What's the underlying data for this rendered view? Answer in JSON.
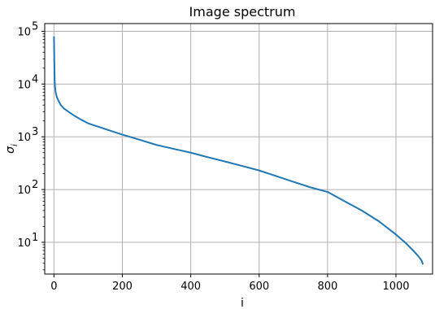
{
  "chart_data": {
    "type": "line",
    "title": "Image spectrum",
    "xlabel": "i",
    "ylabel": "σ",
    "ylabel_subscript": "i",
    "xlim": [
      -27,
      1107
    ],
    "ylim": [
      2.5,
      140000
    ],
    "yscale": "log",
    "grid": true,
    "x_ticks": [
      0,
      200,
      400,
      600,
      800,
      1000
    ],
    "x_tick_labels": [
      "0",
      "200",
      "400",
      "600",
      "800",
      "1000"
    ],
    "y_ticks": [
      10,
      100,
      1000,
      10000,
      100000
    ],
    "y_tick_labels": [
      {
        "base": "10",
        "exp": "1"
      },
      {
        "base": "10",
        "exp": "2"
      },
      {
        "base": "10",
        "exp": "3"
      },
      {
        "base": "10",
        "exp": "4"
      },
      {
        "base": "10",
        "exp": "5"
      }
    ],
    "colors": {
      "line": "#1f77b4",
      "grid": "#b0b0b0",
      "axes": "#000000"
    },
    "series": [
      {
        "x": [
          0,
          1,
          2,
          3,
          5,
          8,
          12,
          20,
          30,
          45,
          60,
          80,
          100,
          150,
          200,
          250,
          300,
          350,
          400,
          450,
          500,
          550,
          600,
          650,
          700,
          750,
          800,
          850,
          900,
          950,
          1000,
          1030,
          1050,
          1065,
          1075,
          1079
        ],
        "y": [
          80000,
          30000,
          12000,
          9000,
          7000,
          5800,
          5000,
          4000,
          3400,
          2900,
          2500,
          2100,
          1800,
          1400,
          1100,
          880,
          700,
          590,
          500,
          410,
          340,
          280,
          230,
          180,
          140,
          110,
          90,
          60,
          40,
          25,
          14,
          9.5,
          7,
          5.5,
          4.5,
          3.8
        ]
      }
    ]
  }
}
